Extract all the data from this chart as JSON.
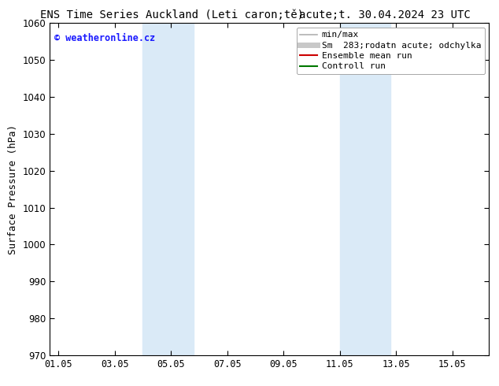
{
  "title_left": "ENS Time Series Auckland (Leti caron;tě)",
  "title_right": "acute;t. 30.04.2024 23 UTC",
  "ylabel": "Surface Pressure (hPa)",
  "ylim": [
    970,
    1060
  ],
  "yticks": [
    970,
    980,
    990,
    1000,
    1010,
    1020,
    1030,
    1040,
    1050,
    1060
  ],
  "xtick_labels": [
    "01.05",
    "03.05",
    "05.05",
    "07.05",
    "09.05",
    "11.05",
    "13.05",
    "15.05"
  ],
  "xtick_positions": [
    0,
    2,
    4,
    6,
    8,
    10,
    12,
    14
  ],
  "xlim": [
    -0.3,
    15.3
  ],
  "shaded_bands": [
    {
      "x_start": 3.0,
      "x_end": 4.8
    },
    {
      "x_start": 10.0,
      "x_end": 11.8
    }
  ],
  "shaded_color": "#daeaf7",
  "background_color": "#ffffff",
  "watermark_text": "© weatheronline.cz",
  "watermark_color": "#1a1aff",
  "legend_entries": [
    {
      "label": "min/max",
      "color": "#b0b0b0",
      "lw": 1.2,
      "type": "hline"
    },
    {
      "label": "Sm  283;rodatn acute; odchylka",
      "color": "#c8c8c8",
      "lw": 5,
      "type": "hline"
    },
    {
      "label": "Ensemble mean run",
      "color": "#cc0000",
      "lw": 1.5,
      "type": "line"
    },
    {
      "label": "Controll run",
      "color": "#007700",
      "lw": 1.5,
      "type": "line"
    }
  ],
  "title_fontsize": 10,
  "tick_fontsize": 8.5,
  "ylabel_fontsize": 9,
  "legend_fontsize": 8
}
